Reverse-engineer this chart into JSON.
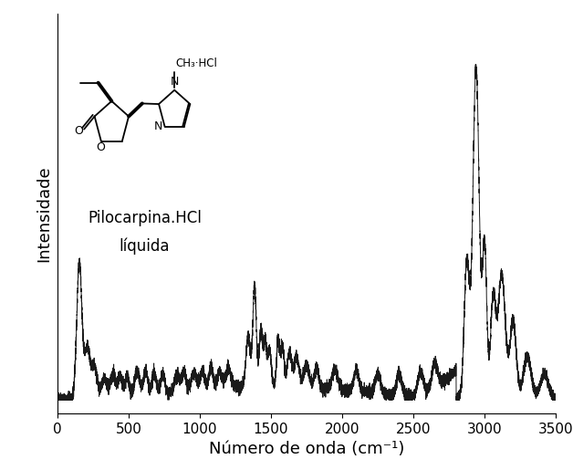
{
  "title": "",
  "xlabel": "Número de onda (cm⁻¹)",
  "ylabel": "Intensidade",
  "xlim": [
    0,
    3500
  ],
  "bg_color": "#ffffff",
  "line_color": "#1a1a1a",
  "label_line1": "Pilocarpina.HCl",
  "label_line2": "líquida",
  "xticks": [
    0,
    500,
    1000,
    1500,
    2000,
    2500,
    3000,
    3500
  ],
  "xlabel_fontsize": 13,
  "ylabel_fontsize": 13,
  "tick_fontsize": 11
}
